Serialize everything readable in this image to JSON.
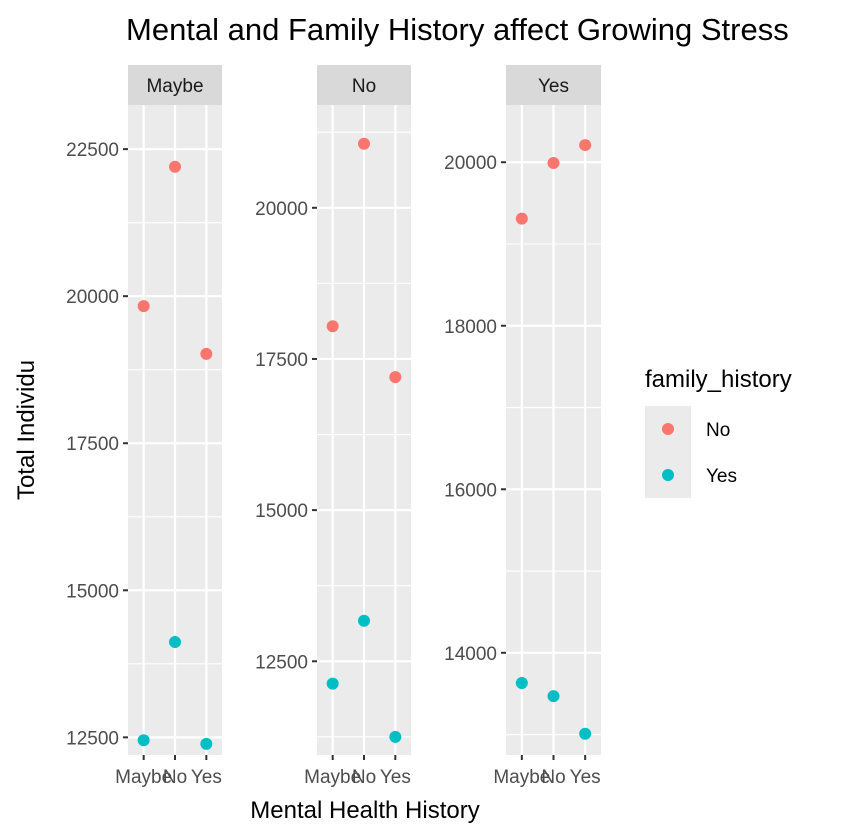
{
  "chart_data": {
    "type": "scatter",
    "title": "Mental and Family History affect Growing Stress",
    "xlabel": "Mental Health History",
    "ylabel": "Total Individu",
    "legend": {
      "title": "family_history",
      "position": "right",
      "entries": [
        {
          "label": "No",
          "color": "#F8766D"
        },
        {
          "label": "Yes",
          "color": "#00BFC4"
        }
      ]
    },
    "grid": true,
    "categories": [
      "Maybe",
      "No",
      "Yes"
    ],
    "panels": [
      {
        "strip": "Maybe",
        "ylim": [
          12200,
          23250
        ],
        "yticks": [
          12500,
          15000,
          17500,
          20000,
          22500
        ],
        "series": [
          {
            "name": "No",
            "values": [
              19830,
              22200,
              19020
            ]
          },
          {
            "name": "Yes",
            "values": [
              12450,
              14120,
              12390
            ]
          }
        ]
      },
      {
        "strip": "No",
        "ylim": [
          10950,
          21700
        ],
        "yticks": [
          12500,
          15000,
          17500,
          20000
        ],
        "series": [
          {
            "name": "No",
            "values": [
              18040,
              21060,
              17200
            ]
          },
          {
            "name": "Yes",
            "values": [
              12130,
              13170,
              11250
            ]
          }
        ]
      },
      {
        "strip": "Yes",
        "ylim": [
          12750,
          20700
        ],
        "yticks": [
          14000,
          16000,
          18000,
          20000
        ],
        "series": [
          {
            "name": "No",
            "values": [
              19310,
              19990,
              20210
            ]
          },
          {
            "name": "Yes",
            "values": [
              13630,
              13470,
              13010
            ]
          }
        ]
      }
    ]
  }
}
